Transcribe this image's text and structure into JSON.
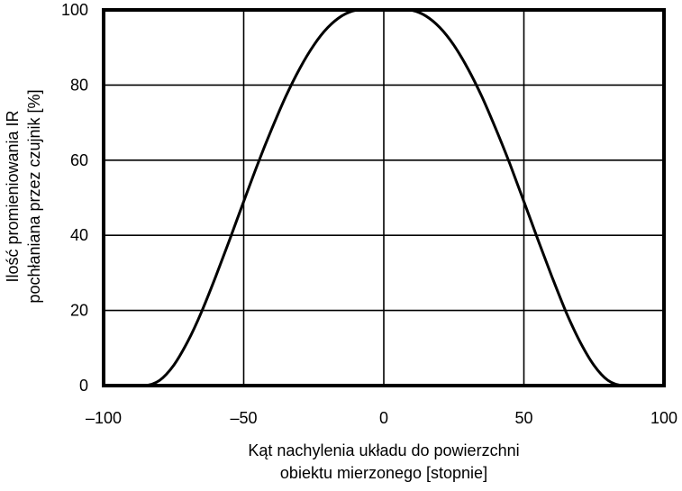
{
  "chart_data": {
    "type": "line",
    "title": "",
    "xlabel_lines": [
      "Kąt nachylenia układu do powierzchni",
      "obiektu mierzonego [stopnie]"
    ],
    "ylabel_lines": [
      "Ilość promieniowania IR",
      "pochłaniana przez czujnik [%]"
    ],
    "xlim": [
      -100,
      100
    ],
    "ylim": [
      0,
      100
    ],
    "xticks": [
      -100,
      -50,
      0,
      50,
      100
    ],
    "xtick_labels": [
      "–100",
      "–50",
      "0",
      "50",
      "100"
    ],
    "yticks": [
      0,
      20,
      40,
      60,
      80,
      100
    ],
    "ytick_labels": [
      "0",
      "20",
      "40",
      "60",
      "80",
      "100"
    ],
    "grid": true,
    "legend": "none",
    "line_color": "#000000",
    "series": [
      {
        "x": [
          -100,
          -90,
          -85,
          -80,
          -75,
          -70,
          -65,
          -60,
          -55,
          -50,
          -45,
          -40,
          -35,
          -30,
          -25,
          -20,
          -15,
          -10,
          -5,
          0,
          5,
          10,
          15,
          20,
          25,
          30,
          35,
          40,
          45,
          50,
          55,
          60,
          65,
          70,
          75,
          80,
          85,
          90,
          100
        ],
        "y": [
          0,
          0,
          0,
          1.4,
          5.4,
          11.7,
          19.7,
          29.0,
          38.9,
          49.0,
          59.0,
          68.3,
          76.9,
          84.4,
          90.6,
          95.3,
          98.4,
          99.9,
          100.0,
          100.0,
          100.0,
          99.9,
          98.4,
          95.3,
          90.6,
          84.4,
          76.9,
          68.3,
          59.0,
          49.0,
          38.9,
          29.0,
          19.7,
          11.7,
          5.4,
          1.4,
          0,
          0,
          0
        ]
      }
    ]
  }
}
